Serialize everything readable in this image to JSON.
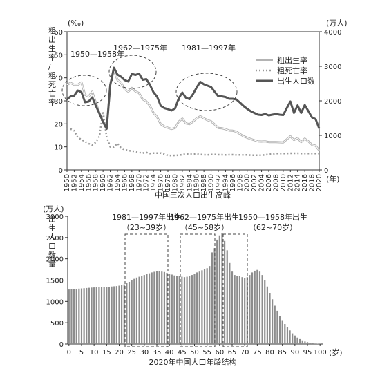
{
  "chart_data": [
    {
      "type": "line",
      "caption": "中国三次人口出生高峰",
      "y_left_unit": "(‰)",
      "y_left_label": "粗出生率/粗死亡率",
      "y_right_unit": "(万人)",
      "x_unit": "(年)",
      "ylim_left": [
        0,
        60
      ],
      "ylim_right": [
        0,
        4000
      ],
      "y_left_ticks": [
        "0",
        "10",
        "20",
        "30",
        "40",
        "50",
        "60"
      ],
      "y_right_ticks": [
        "0",
        "1000",
        "2000",
        "3000",
        "4000"
      ],
      "x_tick_labels": [
        "1950",
        "1952",
        "1954",
        "1956",
        "1958",
        "1960",
        "1962",
        "1964",
        "1966",
        "1968",
        "1970",
        "1972",
        "1974",
        "1976",
        "1978",
        "1980",
        "1982",
        "1984",
        "1986",
        "1988",
        "1990",
        "1992",
        "1994",
        "1996",
        "1998",
        "2000",
        "2002",
        "2004",
        "2006",
        "2008",
        "2010",
        "2012",
        "2014",
        "2016",
        "2018",
        "2020"
      ],
      "annotations": [
        "1950—1958年",
        "1962—1975年",
        "1981—1997年"
      ],
      "legend": [
        "粗出生率",
        "粗死亡率",
        "出生人口数"
      ],
      "x": [
        1950,
        1951,
        1952,
        1953,
        1954,
        1955,
        1956,
        1957,
        1958,
        1959,
        1960,
        1961,
        1962,
        1963,
        1964,
        1965,
        1966,
        1967,
        1968,
        1969,
        1970,
        1971,
        1972,
        1973,
        1974,
        1975,
        1976,
        1977,
        1978,
        1979,
        1980,
        1981,
        1982,
        1983,
        1984,
        1985,
        1986,
        1987,
        1988,
        1989,
        1990,
        1991,
        1992,
        1993,
        1994,
        1995,
        1996,
        1997,
        1998,
        1999,
        2000,
        2001,
        2002,
        2003,
        2004,
        2005,
        2006,
        2007,
        2008,
        2009,
        2010,
        2011,
        2012,
        2013,
        2014,
        2015,
        2016,
        2017,
        2018,
        2019,
        2020
      ],
      "series": [
        {
          "name": "粗出生率",
          "axis": "left",
          "color": "#b3b3b3",
          "values": [
            37.0,
            37.8,
            37.0,
            37.0,
            38.0,
            32.6,
            31.9,
            34.0,
            29.2,
            24.8,
            20.9,
            18.0,
            37.0,
            43.4,
            39.1,
            37.9,
            35.1,
            34.0,
            35.6,
            34.1,
            33.4,
            30.7,
            29.8,
            27.9,
            24.8,
            23.0,
            19.9,
            18.9,
            18.3,
            17.8,
            18.2,
            20.9,
            22.3,
            20.2,
            19.9,
            21.0,
            22.4,
            23.3,
            22.4,
            21.6,
            21.1,
            19.7,
            18.2,
            18.1,
            17.7,
            17.1,
            17.0,
            16.6,
            15.6,
            14.6,
            14.0,
            13.4,
            12.9,
            12.4,
            12.3,
            12.4,
            12.1,
            12.1,
            12.1,
            12.0,
            11.9,
            13.3,
            14.6,
            13.0,
            13.8,
            12.1,
            13.6,
            12.4,
            10.9,
            10.5,
            8.5
          ]
        },
        {
          "name": "粗死亡率",
          "axis": "left",
          "color": "#999999",
          "values": [
            18.0,
            17.8,
            17.0,
            14.0,
            13.2,
            12.3,
            11.4,
            10.8,
            12.0,
            14.6,
            25.4,
            14.2,
            10.0,
            10.0,
            11.5,
            9.5,
            8.8,
            8.4,
            8.2,
            8.0,
            7.6,
            7.3,
            7.6,
            7.1,
            7.3,
            7.3,
            7.3,
            6.9,
            6.3,
            6.2,
            6.3,
            6.4,
            6.6,
            6.9,
            6.8,
            6.8,
            6.9,
            6.7,
            6.6,
            6.5,
            6.7,
            6.7,
            6.6,
            6.6,
            6.5,
            6.6,
            6.6,
            6.5,
            6.5,
            6.5,
            6.5,
            6.4,
            6.4,
            6.4,
            6.4,
            6.5,
            6.8,
            6.9,
            7.1,
            7.1,
            7.1,
            7.1,
            7.2,
            7.2,
            7.2,
            7.1,
            7.1,
            7.1,
            7.1,
            7.1,
            7.1
          ]
        },
        {
          "name": "出生人口数",
          "axis": "right",
          "color": "#555555",
          "values": [
            2040,
            2130,
            2150,
            2300,
            2250,
            1960,
            1980,
            2100,
            1860,
            1630,
            1390,
            1190,
            2460,
            2960,
            2760,
            2700,
            2600,
            2560,
            2780,
            2750,
            2790,
            2610,
            2630,
            2470,
            2250,
            2120,
            1860,
            1790,
            1760,
            1720,
            1780,
            2070,
            2240,
            2090,
            2050,
            2200,
            2390,
            2550,
            2480,
            2440,
            2400,
            2260,
            2130,
            2130,
            2110,
            2060,
            2060,
            2040,
            1950,
            1850,
            1770,
            1700,
            1650,
            1600,
            1590,
            1620,
            1580,
            1600,
            1620,
            1600,
            1590,
            1790,
            1980,
            1650,
            1870,
            1650,
            1880,
            1700,
            1520,
            1470,
            1200
          ]
        }
      ]
    },
    {
      "type": "bar",
      "caption": "2020年中国人口年龄结构",
      "y_label": "出生人口数量",
      "y_unit": "(万人)",
      "x_unit": "(岁)",
      "ylim": [
        0,
        3000
      ],
      "y_ticks": [
        "0",
        "500",
        "1000",
        "1500",
        "2000",
        "2500",
        "3000"
      ],
      "x_ticks": [
        "0",
        "5",
        "10",
        "15",
        "20",
        "25",
        "30",
        "35",
        "40",
        "45",
        "50",
        "55",
        "60",
        "65",
        "70",
        "75",
        "80",
        "85",
        "90",
        "95",
        "100"
      ],
      "annotations": [
        {
          "title": "1981—1997年出生",
          "range": "（23~39岁）"
        },
        {
          "title": "1962—1975年出生",
          "range": "（45~58岁）"
        },
        {
          "title": "1950—1958年出生",
          "range": "（62~70岁）"
        }
      ],
      "values": [
        1280,
        1285,
        1290,
        1295,
        1300,
        1305,
        1310,
        1315,
        1320,
        1325,
        1328,
        1330,
        1332,
        1335,
        1338,
        1340,
        1345,
        1350,
        1355,
        1360,
        1370,
        1380,
        1400,
        1430,
        1460,
        1500,
        1530,
        1560,
        1580,
        1600,
        1620,
        1640,
        1660,
        1680,
        1695,
        1705,
        1710,
        1700,
        1690,
        1670,
        1650,
        1630,
        1610,
        1600,
        1590,
        1580,
        1570,
        1580,
        1600,
        1620,
        1650,
        1680,
        1700,
        1730,
        1760,
        1780,
        1830,
        2150,
        2250,
        2450,
        2550,
        2600,
        2420,
        2200,
        1900,
        1700,
        1620,
        1600,
        1590,
        1570,
        1550,
        1570,
        1620,
        1680,
        1720,
        1740,
        1700,
        1620,
        1500,
        1350,
        1200,
        1050,
        900,
        780,
        660,
        560,
        470,
        390,
        320,
        250,
        200,
        150,
        115,
        85,
        60,
        45,
        30,
        20,
        12,
        8,
        4
      ]
    }
  ]
}
